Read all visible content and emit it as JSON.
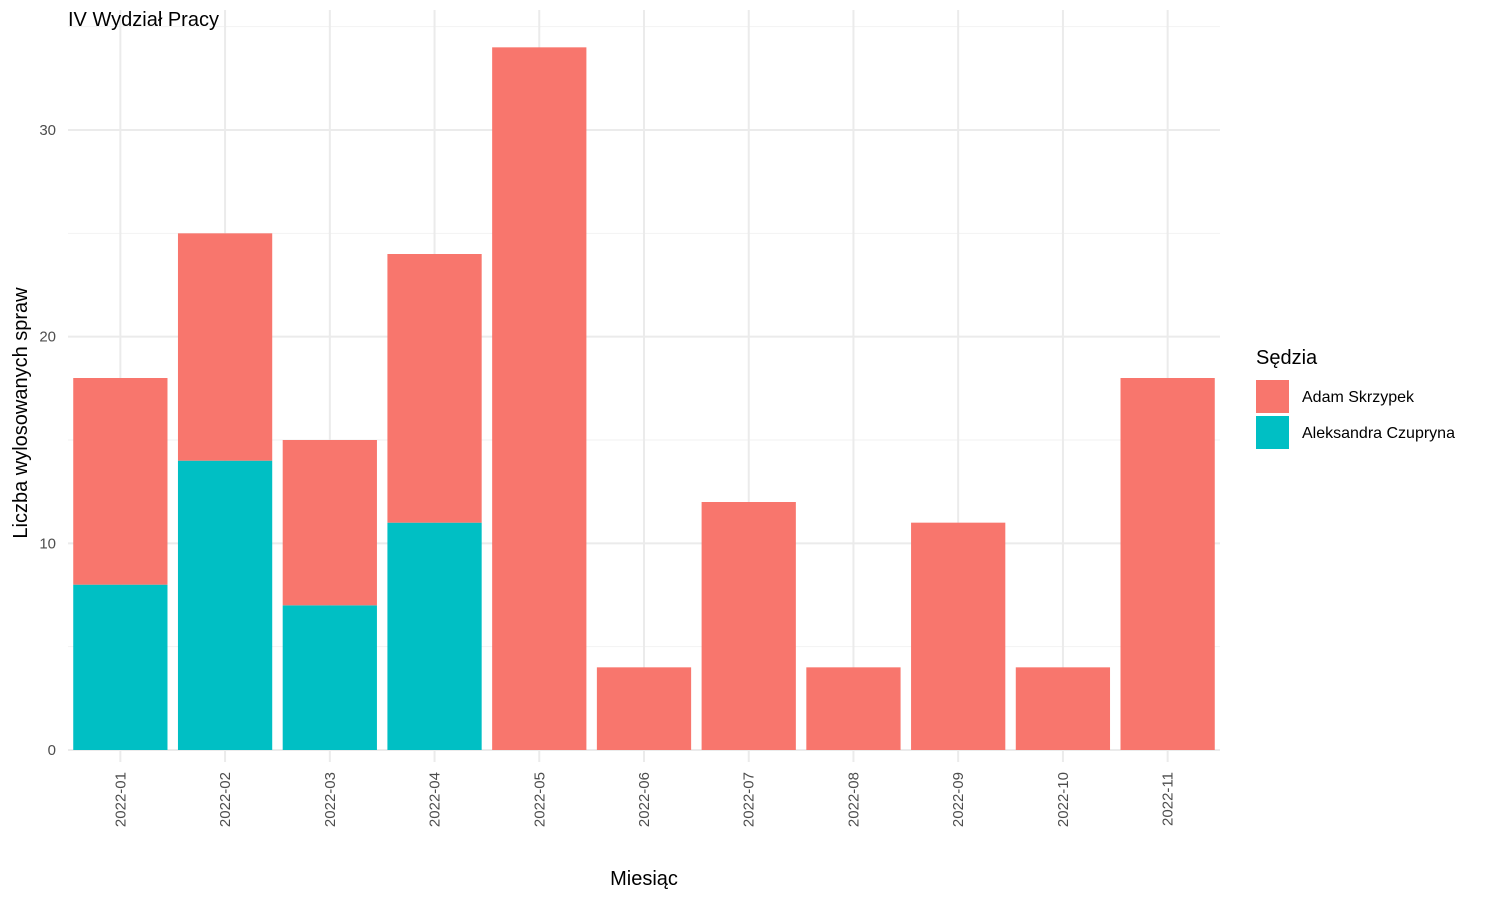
{
  "chart_data": {
    "type": "bar",
    "stacked": true,
    "title": "IV Wydział Pracy",
    "xlabel": "Miesiąc",
    "ylabel": "Liczba wylosowanych spraw",
    "categories": [
      "2022-01",
      "2022-02",
      "2022-03",
      "2022-04",
      "2022-05",
      "2022-06",
      "2022-07",
      "2022-08",
      "2022-09",
      "2022-10",
      "2022-11"
    ],
    "series": [
      {
        "name": "Aleksandra Czupryna",
        "color": "#00BFC4",
        "values": [
          8,
          14,
          7,
          11,
          0,
          0,
          0,
          0,
          0,
          0,
          0
        ]
      },
      {
        "name": "Adam Skrzypek",
        "color": "#F8766D",
        "values": [
          10,
          11,
          8,
          13,
          34,
          4,
          12,
          4,
          11,
          4,
          18
        ]
      }
    ],
    "ylim": [
      0,
      34
    ],
    "yticks": [
      0,
      10,
      20,
      30
    ],
    "grid": true,
    "legend": {
      "title": "Sędzia",
      "position": "right",
      "items": [
        {
          "label": "Adam Skrzypek",
          "color": "#F8766D"
        },
        {
          "label": "Aleksandra Czupryna",
          "color": "#00BFC4"
        }
      ]
    }
  }
}
